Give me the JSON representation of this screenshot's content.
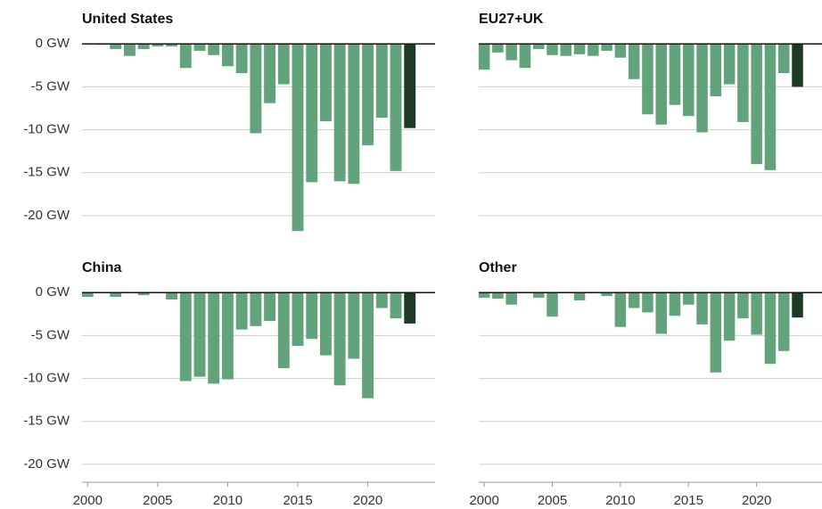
{
  "chart_data": [
    {
      "type": "bar",
      "title": "United States",
      "x": [
        2000,
        2001,
        2002,
        2003,
        2004,
        2005,
        2006,
        2007,
        2008,
        2009,
        2010,
        2011,
        2012,
        2013,
        2014,
        2015,
        2016,
        2017,
        2018,
        2019,
        2020,
        2021,
        2022,
        2023
      ],
      "values": [
        0,
        -0.1,
        -0.6,
        -1.4,
        -0.6,
        -0.3,
        -0.3,
        -2.8,
        -0.8,
        -1.3,
        -2.6,
        -3.4,
        -10.4,
        -6.9,
        -4.7,
        -21.8,
        -16.1,
        -9.0,
        -16.0,
        -16.3,
        -11.8,
        -8.6,
        -14.8,
        -9.8
      ],
      "colors": [
        "#62a37b",
        "#62a37b",
        "#62a37b",
        "#62a37b",
        "#62a37b",
        "#62a37b",
        "#62a37b",
        "#62a37b",
        "#62a37b",
        "#62a37b",
        "#62a37b",
        "#62a37b",
        "#62a37b",
        "#62a37b",
        "#62a37b",
        "#62a37b",
        "#62a37b",
        "#62a37b",
        "#62a37b",
        "#62a37b",
        "#62a37b",
        "#62a37b",
        "#62a37b",
        "#1d3a27"
      ],
      "xlim": [
        1999.6,
        2024.8
      ],
      "ylim": [
        -22.5,
        2
      ],
      "yticks": [
        {
          "value": 0,
          "label": "0 GW"
        },
        {
          "value": -5,
          "label": "-5 GW"
        },
        {
          "value": -10,
          "label": "-10 GW"
        },
        {
          "value": -15,
          "label": "-15 GW"
        },
        {
          "value": -20,
          "label": "-20 GW"
        }
      ],
      "grid": true
    },
    {
      "type": "bar",
      "title": "EU27+UK",
      "x": [
        2000,
        2001,
        2002,
        2003,
        2004,
        2005,
        2006,
        2007,
        2008,
        2009,
        2010,
        2011,
        2012,
        2013,
        2014,
        2015,
        2016,
        2017,
        2018,
        2019,
        2020,
        2021,
        2022,
        2023
      ],
      "values": [
        -3.0,
        -1.0,
        -1.9,
        -2.8,
        -0.6,
        -1.3,
        -1.4,
        -1.2,
        -1.4,
        -0.8,
        -1.6,
        -4.1,
        -8.2,
        -9.4,
        -7.1,
        -8.4,
        -10.3,
        -6.1,
        -4.7,
        -9.1,
        -14.0,
        -14.7,
        -3.4,
        -5.0
      ],
      "colors": [
        "#62a37b",
        "#62a37b",
        "#62a37b",
        "#62a37b",
        "#62a37b",
        "#62a37b",
        "#62a37b",
        "#62a37b",
        "#62a37b",
        "#62a37b",
        "#62a37b",
        "#62a37b",
        "#62a37b",
        "#62a37b",
        "#62a37b",
        "#62a37b",
        "#62a37b",
        "#62a37b",
        "#62a37b",
        "#62a37b",
        "#62a37b",
        "#62a37b",
        "#62a37b",
        "#1d3a27"
      ],
      "xlim": [
        1999.6,
        2024.8
      ],
      "ylim": [
        -22.5,
        2
      ],
      "yticks": [
        0,
        -5,
        -10,
        -15,
        -20
      ],
      "grid": true
    },
    {
      "type": "bar",
      "title": "China",
      "x": [
        2000,
        2001,
        2002,
        2003,
        2004,
        2005,
        2006,
        2007,
        2008,
        2009,
        2010,
        2011,
        2012,
        2013,
        2014,
        2015,
        2016,
        2017,
        2018,
        2019,
        2020,
        2021,
        2022,
        2023
      ],
      "values": [
        -0.5,
        0,
        -0.5,
        0,
        -0.3,
        0,
        -0.8,
        -10.3,
        -9.8,
        -10.6,
        -10.1,
        -4.3,
        -3.9,
        -3.3,
        -8.8,
        -6.2,
        -5.4,
        -7.3,
        -10.8,
        -7.7,
        -12.3,
        -1.8,
        -3.0,
        -3.6
      ],
      "colors": [
        "#62a37b",
        "#62a37b",
        "#62a37b",
        "#62a37b",
        "#62a37b",
        "#62a37b",
        "#62a37b",
        "#62a37b",
        "#62a37b",
        "#62a37b",
        "#62a37b",
        "#62a37b",
        "#62a37b",
        "#62a37b",
        "#62a37b",
        "#62a37b",
        "#62a37b",
        "#62a37b",
        "#62a37b",
        "#62a37b",
        "#62a37b",
        "#62a37b",
        "#62a37b",
        "#1d3a27"
      ],
      "xlim": [
        1999.6,
        2024.8
      ],
      "ylim": [
        -22.5,
        2
      ],
      "yticks": [
        {
          "value": 0,
          "label": "0 GW"
        },
        {
          "value": -5,
          "label": "-5 GW"
        },
        {
          "value": -10,
          "label": "-10 GW"
        },
        {
          "value": -15,
          "label": "-15 GW"
        },
        {
          "value": -20,
          "label": "-20 GW"
        }
      ],
      "xticks": [
        2000,
        2005,
        2010,
        2015,
        2020
      ],
      "grid": true
    },
    {
      "type": "bar",
      "title": "Other",
      "x": [
        2000,
        2001,
        2002,
        2003,
        2004,
        2005,
        2006,
        2007,
        2008,
        2009,
        2010,
        2011,
        2012,
        2013,
        2014,
        2015,
        2016,
        2017,
        2018,
        2019,
        2020,
        2021,
        2022,
        2023
      ],
      "values": [
        -0.6,
        -0.7,
        -1.4,
        0,
        -0.6,
        -2.8,
        0,
        -0.9,
        0,
        -0.4,
        -4.0,
        -1.8,
        -2.3,
        -4.8,
        -2.7,
        -1.4,
        -3.7,
        -9.3,
        -5.6,
        -3.0,
        -4.9,
        -8.3,
        -6.8,
        -2.9
      ],
      "colors": [
        "#62a37b",
        "#62a37b",
        "#62a37b",
        "#62a37b",
        "#62a37b",
        "#62a37b",
        "#62a37b",
        "#62a37b",
        "#62a37b",
        "#62a37b",
        "#62a37b",
        "#62a37b",
        "#62a37b",
        "#62a37b",
        "#62a37b",
        "#62a37b",
        "#62a37b",
        "#62a37b",
        "#62a37b",
        "#62a37b",
        "#62a37b",
        "#62a37b",
        "#62a37b",
        "#1d3a27"
      ],
      "xlim": [
        1999.6,
        2024.8
      ],
      "ylim": [
        -22.5,
        2
      ],
      "yticks": [
        0,
        -5,
        -10,
        -15,
        -20
      ],
      "xticks": [
        2000,
        2005,
        2010,
        2015,
        2020
      ],
      "grid": true
    }
  ]
}
